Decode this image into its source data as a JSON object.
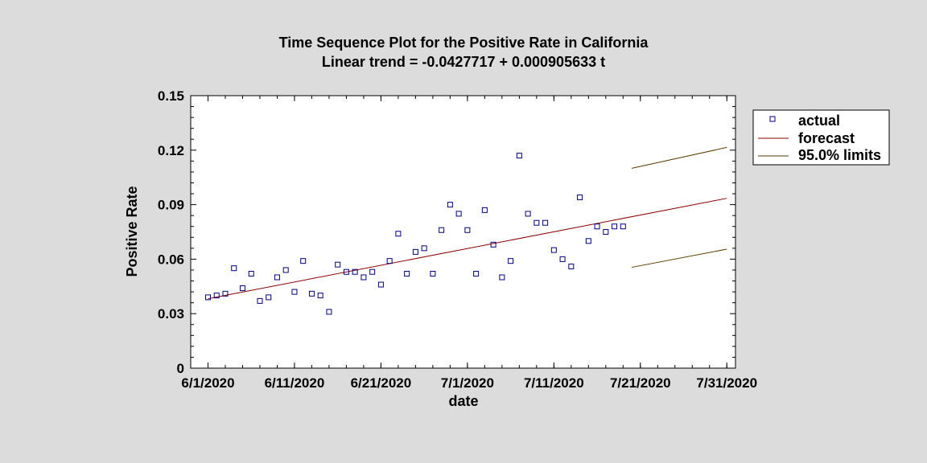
{
  "chart_data": {
    "type": "scatter",
    "title": "Time Sequence Plot for the Positive Rate in California",
    "subtitle": "Linear trend = -0.0427717 + 0.000905633 t",
    "xlabel": "date",
    "ylabel": "Positive Rate",
    "ylim": [
      0,
      0.15
    ],
    "xlim": [
      "2020-05-30",
      "2020-08-01"
    ],
    "yticks": [
      "0",
      "0.03",
      "0.06",
      "0.09",
      "0.12",
      "0.15"
    ],
    "xticks": [
      "6/1/2020",
      "6/11/2020",
      "6/21/2020",
      "7/1/2020",
      "7/11/2020",
      "7/21/2020",
      "7/31/2020"
    ],
    "grid": false,
    "legend_position": "right",
    "legend": [
      "actual",
      "forecast",
      "95.0% limits"
    ],
    "colors": {
      "actual": "#00007f",
      "forecast": "#8b0000",
      "limits": "#5a3a00"
    },
    "actual": {
      "name": "actual",
      "x": [
        "2020-06-01",
        "2020-06-02",
        "2020-06-03",
        "2020-06-04",
        "2020-06-05",
        "2020-06-06",
        "2020-06-07",
        "2020-06-08",
        "2020-06-09",
        "2020-06-10",
        "2020-06-11",
        "2020-06-12",
        "2020-06-13",
        "2020-06-14",
        "2020-06-15",
        "2020-06-16",
        "2020-06-17",
        "2020-06-18",
        "2020-06-19",
        "2020-06-20",
        "2020-06-21",
        "2020-06-22",
        "2020-06-23",
        "2020-06-24",
        "2020-06-25",
        "2020-06-26",
        "2020-06-27",
        "2020-06-28",
        "2020-06-29",
        "2020-06-30",
        "2020-07-01",
        "2020-07-02",
        "2020-07-03",
        "2020-07-04",
        "2020-07-05",
        "2020-07-06",
        "2020-07-07",
        "2020-07-08",
        "2020-07-09",
        "2020-07-10",
        "2020-07-11",
        "2020-07-12",
        "2020-07-13",
        "2020-07-14",
        "2020-07-15",
        "2020-07-16",
        "2020-07-17",
        "2020-07-18",
        "2020-07-19"
      ],
      "y": [
        0.039,
        0.04,
        0.041,
        0.055,
        0.044,
        0.052,
        0.037,
        0.039,
        0.05,
        0.054,
        0.042,
        0.059,
        0.041,
        0.04,
        0.031,
        0.057,
        0.053,
        0.053,
        0.05,
        0.053,
        0.046,
        0.059,
        0.074,
        0.052,
        0.064,
        0.066,
        0.052,
        0.076,
        0.09,
        0.085,
        0.076,
        0.052,
        0.087,
        0.068,
        0.05,
        0.059,
        0.117,
        0.085,
        0.08,
        0.08,
        0.065,
        0.06,
        0.056,
        0.094,
        0.07,
        0.078,
        0.075,
        0.078,
        0.078
      ]
    },
    "forecast": {
      "name": "forecast",
      "x": [
        "2020-06-01",
        "2020-07-31"
      ],
      "y": [
        0.0382,
        0.0935
      ]
    },
    "upper_limit": {
      "name": "95.0% limits",
      "x": [
        "2020-07-20",
        "2020-07-31"
      ],
      "y": [
        0.11,
        0.1215
      ]
    },
    "lower_limit": {
      "name": "95.0% limits",
      "x": [
        "2020-07-20",
        "2020-07-31"
      ],
      "y": [
        0.0555,
        0.0655
      ]
    }
  }
}
